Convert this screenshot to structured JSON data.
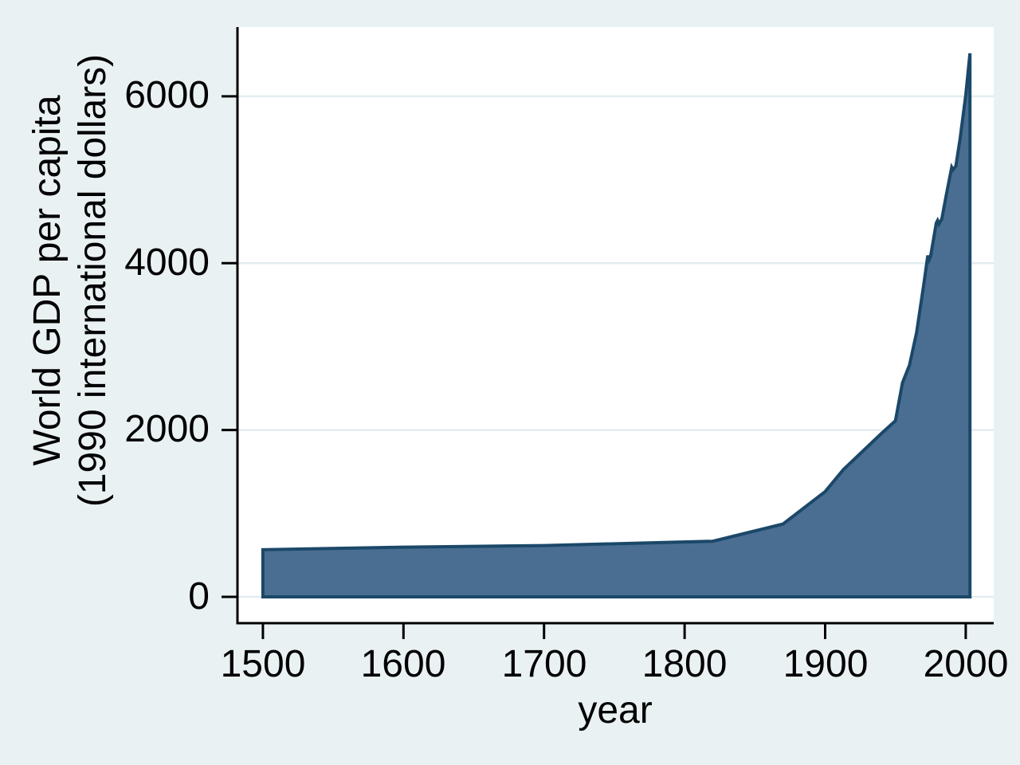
{
  "figure": {
    "background_color": "#eaf1f3",
    "plot_background_color": "#ffffff",
    "grid_color": "#e2edf0",
    "axis_color": "#000000",
    "text_color": "#000000"
  },
  "chart_data": {
    "type": "area",
    "title": "",
    "xlabel": "year",
    "ylabel_line1": "World GDP per capita",
    "ylabel_line2": "(1990 international dollars)",
    "x_ticks": [
      "1500",
      "1600",
      "1700",
      "1800",
      "1900",
      "2000"
    ],
    "y_ticks": [
      "6000",
      "4000",
      "2000",
      "0"
    ],
    "xlim": [
      1481.9,
      2019.9
    ],
    "ylim": [
      -314.9,
      6830
    ],
    "grid": "horizontal",
    "legend": "none",
    "area_fill_color": "#4a6e91",
    "area_line_color": "#1b4869",
    "baseline": 0,
    "series": [
      {
        "name": "World GDP per capita (1990 international dollars)",
        "points": [
          [
            1500,
            566
          ],
          [
            1600,
            596
          ],
          [
            1700,
            615
          ],
          [
            1820,
            667
          ],
          [
            1870,
            873
          ],
          [
            1900,
            1262
          ],
          [
            1913,
            1526
          ],
          [
            1940,
            1958
          ],
          [
            1950,
            2111
          ],
          [
            1955,
            2566
          ],
          [
            1960,
            2777
          ],
          [
            1965,
            3168
          ],
          [
            1970,
            3729
          ],
          [
            1973,
            4091
          ],
          [
            1974,
            4040
          ],
          [
            1975,
            4081
          ],
          [
            1979,
            4480
          ],
          [
            1980,
            4512
          ],
          [
            1981,
            4470
          ],
          [
            1983,
            4530
          ],
          [
            1986,
            4803
          ],
          [
            1990,
            5150
          ],
          [
            1991,
            5120
          ],
          [
            1993,
            5164
          ],
          [
            1996,
            5490
          ],
          [
            2000,
            6012
          ],
          [
            2003,
            6516
          ]
        ]
      }
    ]
  }
}
